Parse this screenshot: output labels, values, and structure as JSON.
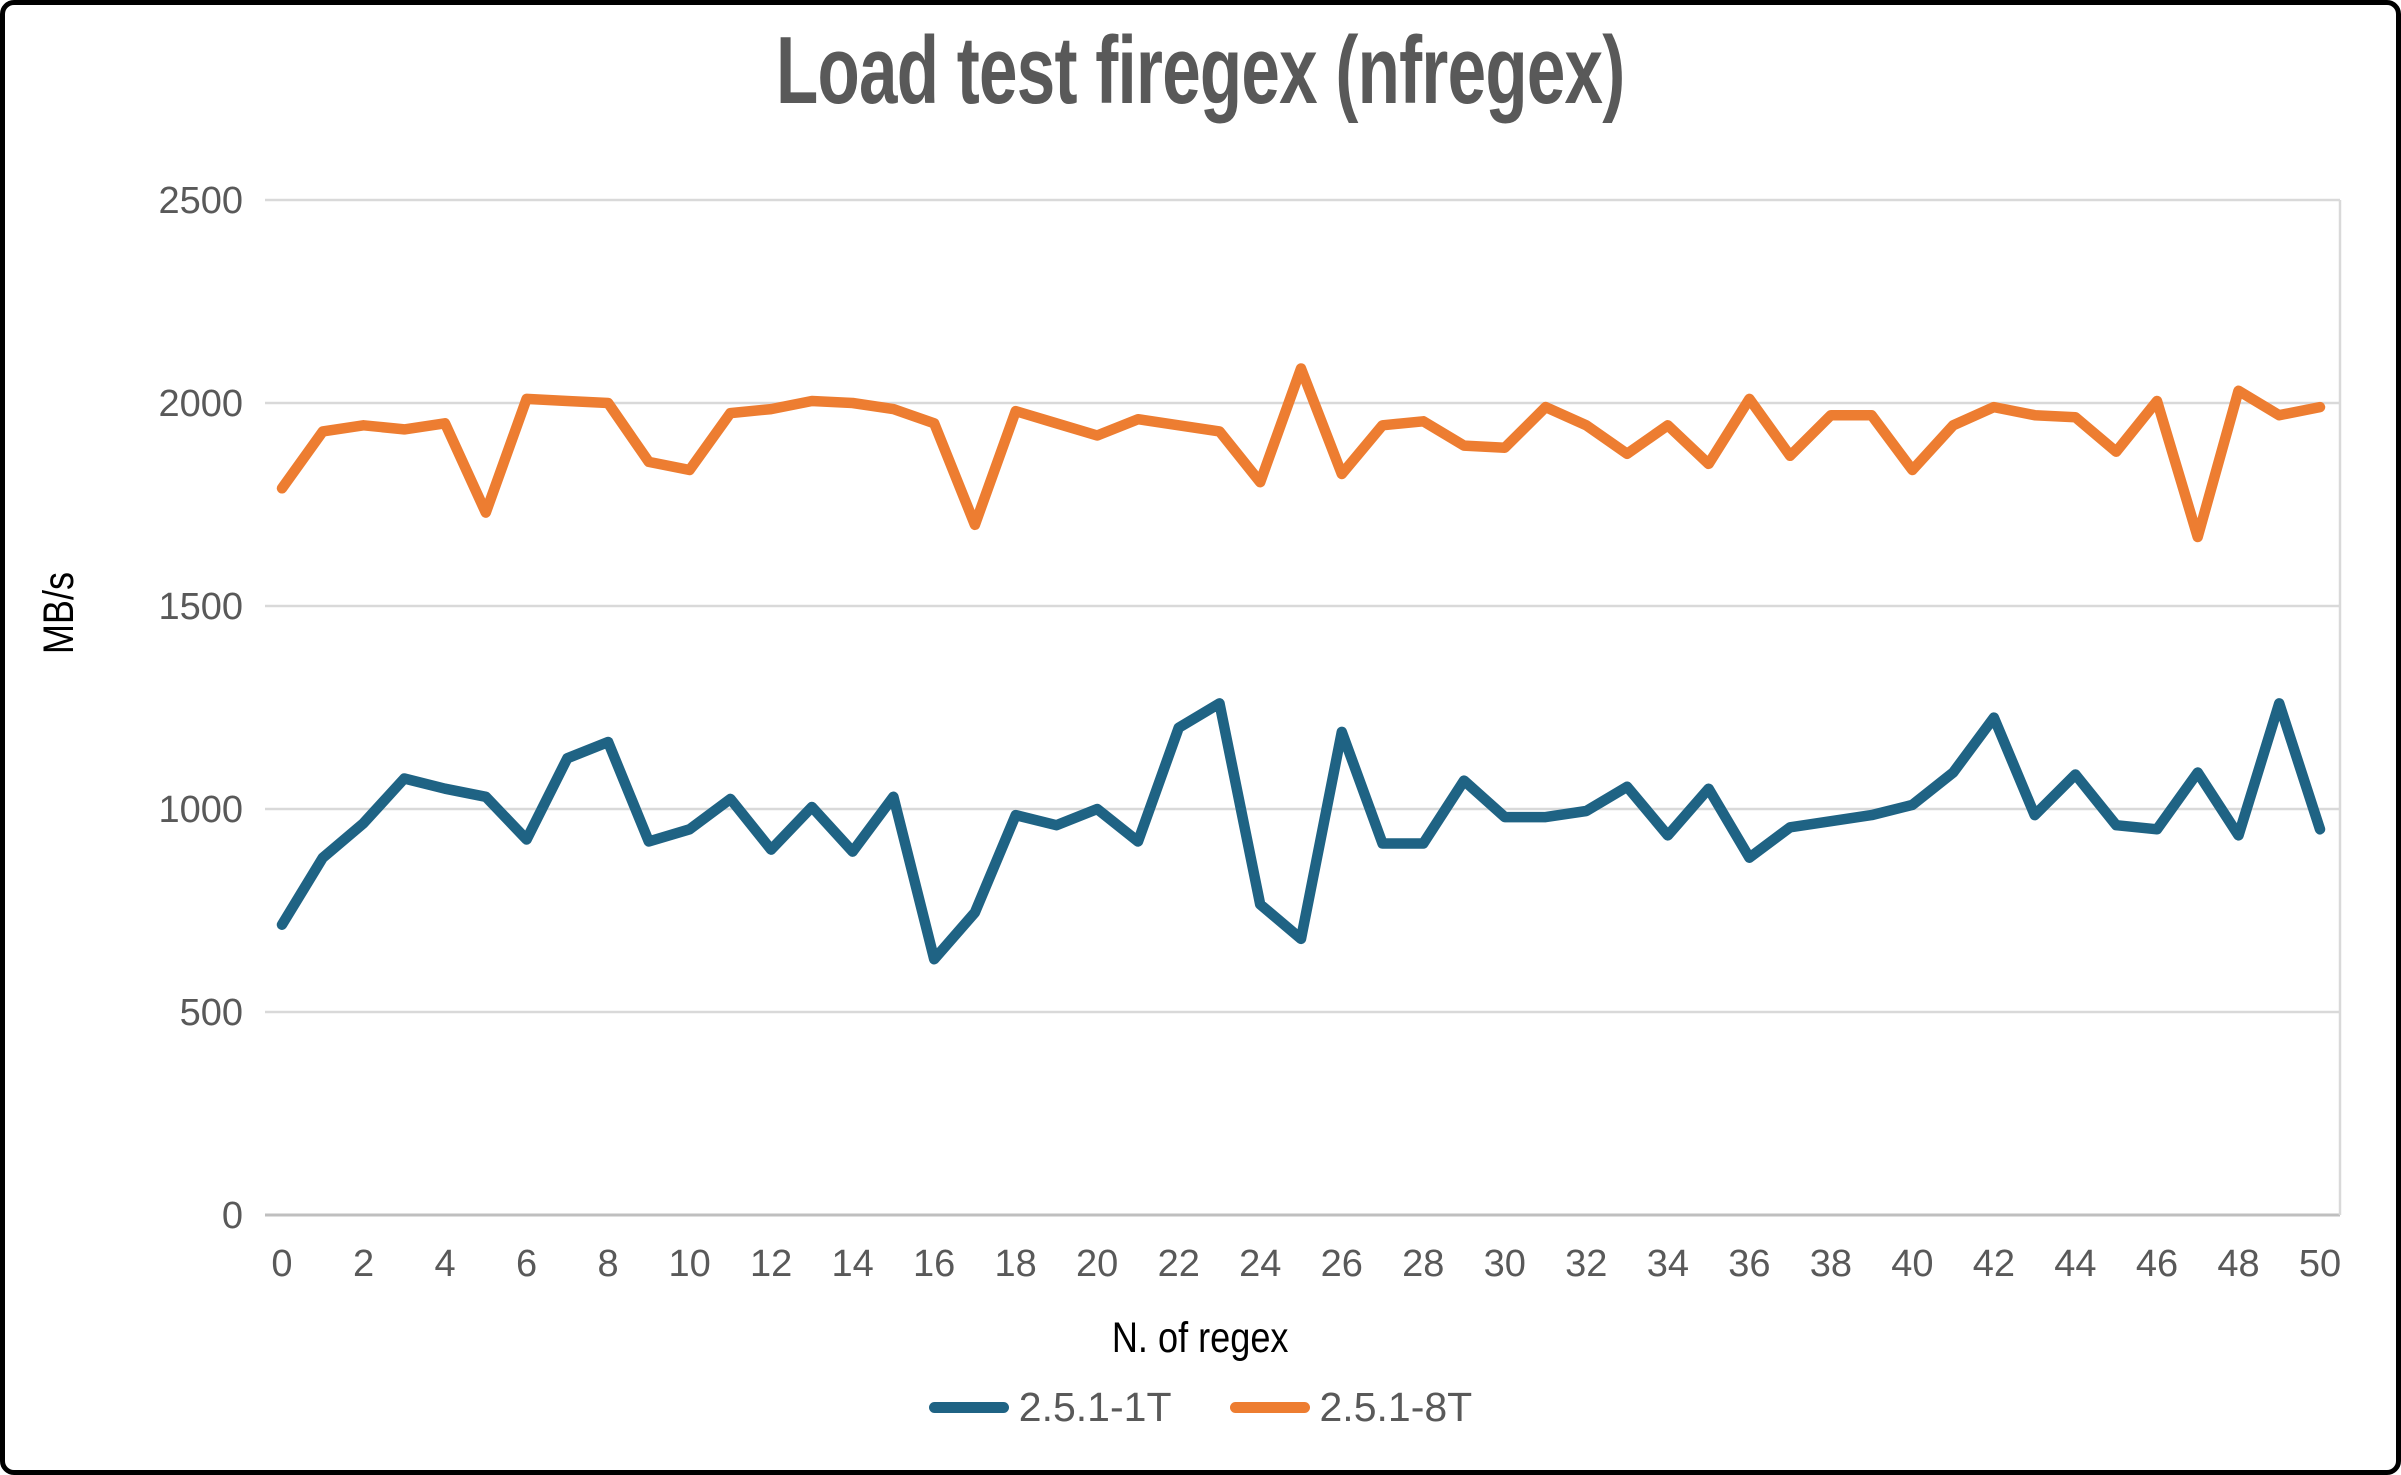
{
  "title": "Load test firegex (nfregex)",
  "y_axis": {
    "title": "MB/s"
  },
  "x_axis": {
    "title": "N. of regex"
  },
  "legend": {
    "items": [
      {
        "label": "2.5.1-1T",
        "color": "#1F6384"
      },
      {
        "label": "2.5.1-8T",
        "color": "#ED7D31"
      }
    ]
  },
  "colors": {
    "series_1t": "#1F6384",
    "series_8t": "#ED7D31",
    "gridline": "#D9D9D9",
    "axis_line": "#BFBFBF",
    "text_gray": "#595959",
    "frame": "#000000"
  },
  "chart_data": {
    "type": "line",
    "title": "Load test firegex (nfregex)",
    "xlabel": "N. of regex",
    "ylabel": "MB/s",
    "ylim": [
      0,
      2500
    ],
    "yticks": [
      0,
      500,
      1000,
      1500,
      2000,
      2500
    ],
    "xticks": [
      0,
      2,
      4,
      6,
      8,
      10,
      12,
      14,
      16,
      18,
      20,
      22,
      24,
      26,
      28,
      30,
      32,
      34,
      36,
      38,
      40,
      42,
      44,
      46,
      48,
      50
    ],
    "grid": "horizontal",
    "legend_position": "bottom",
    "x": [
      0,
      1,
      2,
      3,
      4,
      5,
      6,
      7,
      8,
      9,
      10,
      11,
      12,
      13,
      14,
      15,
      16,
      17,
      18,
      19,
      20,
      21,
      22,
      23,
      24,
      25,
      26,
      27,
      28,
      29,
      30,
      31,
      32,
      33,
      34,
      35,
      36,
      37,
      38,
      39,
      40,
      41,
      42,
      43,
      44,
      45,
      46,
      47,
      48,
      49,
      50
    ],
    "series": [
      {
        "name": "2.5.1-1T",
        "color": "#1F6384",
        "values": [
          715,
          880,
          965,
          1075,
          1050,
          1030,
          925,
          1125,
          1165,
          920,
          950,
          1025,
          900,
          1005,
          895,
          1030,
          630,
          745,
          985,
          960,
          1000,
          920,
          1200,
          1260,
          765,
          680,
          1190,
          915,
          915,
          1070,
          980,
          980,
          995,
          1055,
          935,
          1050,
          880,
          955,
          970,
          985,
          1010,
          1090,
          1225,
          985,
          1085,
          960,
          950,
          1090,
          935,
          1260,
          950
        ]
      },
      {
        "name": "2.5.1-8T",
        "color": "#ED7D31",
        "values": [
          1790,
          1930,
          1945,
          1935,
          1950,
          1730,
          2010,
          2005,
          2000,
          1855,
          1835,
          1975,
          1985,
          2005,
          2000,
          1985,
          1950,
          1700,
          1980,
          1950,
          1920,
          1960,
          1945,
          1930,
          1805,
          2085,
          1825,
          1945,
          1955,
          1895,
          1890,
          1990,
          1945,
          1875,
          1945,
          1850,
          2010,
          1870,
          1970,
          1970,
          1835,
          1945,
          1990,
          1970,
          1965,
          1880,
          2005,
          1670,
          2030,
          1970,
          1990
        ]
      }
    ]
  }
}
